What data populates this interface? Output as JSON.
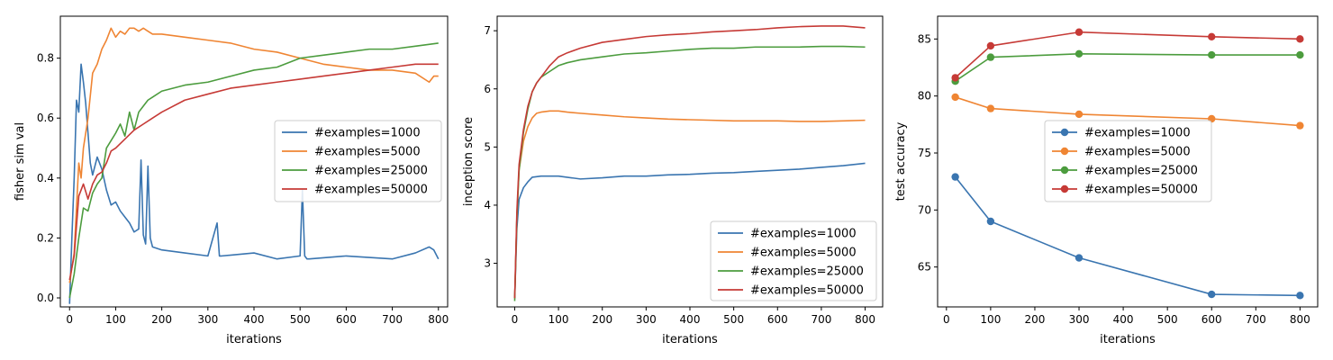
{
  "chart_data": [
    {
      "type": "line",
      "xlabel": "iterations",
      "ylabel": "fisher sim val",
      "xlim": [
        -20,
        820
      ],
      "ylim": [
        -0.03,
        0.94
      ],
      "xticks": [
        0,
        100,
        200,
        300,
        400,
        500,
        600,
        700,
        800
      ],
      "yticks": [
        0.0,
        0.2,
        0.4,
        0.6,
        0.8
      ],
      "legend": "center-right",
      "series": [
        {
          "name": "#examples=1000",
          "color": "#3a75b0",
          "x": [
            0,
            5,
            10,
            15,
            20,
            25,
            30,
            35,
            40,
            45,
            50,
            60,
            70,
            80,
            90,
            100,
            110,
            120,
            130,
            140,
            150,
            155,
            160,
            165,
            170,
            175,
            180,
            200,
            250,
            300,
            320,
            325,
            330,
            400,
            450,
            500,
            505,
            510,
            515,
            520,
            600,
            700,
            750,
            780,
            790,
            800
          ],
          "y": [
            -0.02,
            0.2,
            0.4,
            0.66,
            0.62,
            0.78,
            0.72,
            0.65,
            0.55,
            0.45,
            0.41,
            0.47,
            0.43,
            0.36,
            0.31,
            0.32,
            0.29,
            0.27,
            0.25,
            0.22,
            0.23,
            0.46,
            0.21,
            0.18,
            0.44,
            0.2,
            0.17,
            0.16,
            0.15,
            0.14,
            0.25,
            0.14,
            0.14,
            0.15,
            0.13,
            0.14,
            0.36,
            0.14,
            0.13,
            0.13,
            0.14,
            0.13,
            0.15,
            0.17,
            0.16,
            0.13
          ]
        },
        {
          "name": "#examples=5000",
          "color": "#ef8533",
          "x": [
            0,
            10,
            20,
            25,
            30,
            40,
            50,
            60,
            70,
            80,
            90,
            100,
            110,
            120,
            130,
            140,
            150,
            160,
            170,
            180,
            200,
            250,
            300,
            350,
            400,
            450,
            500,
            550,
            600,
            650,
            700,
            750,
            780,
            790,
            800
          ],
          "y": [
            0.05,
            0.15,
            0.45,
            0.4,
            0.5,
            0.6,
            0.75,
            0.78,
            0.83,
            0.86,
            0.9,
            0.87,
            0.89,
            0.88,
            0.9,
            0.9,
            0.89,
            0.9,
            0.89,
            0.88,
            0.88,
            0.87,
            0.86,
            0.85,
            0.83,
            0.82,
            0.8,
            0.78,
            0.77,
            0.76,
            0.76,
            0.75,
            0.72,
            0.74,
            0.74
          ]
        },
        {
          "name": "#examples=25000",
          "color": "#4c9c3e",
          "x": [
            0,
            10,
            20,
            30,
            40,
            50,
            60,
            70,
            80,
            100,
            110,
            120,
            130,
            140,
            150,
            160,
            170,
            180,
            200,
            250,
            300,
            350,
            400,
            450,
            500,
            550,
            600,
            650,
            700,
            750,
            800
          ],
          "y": [
            0.0,
            0.08,
            0.2,
            0.3,
            0.29,
            0.35,
            0.38,
            0.4,
            0.5,
            0.55,
            0.58,
            0.54,
            0.62,
            0.56,
            0.62,
            0.64,
            0.66,
            0.67,
            0.69,
            0.71,
            0.72,
            0.74,
            0.76,
            0.77,
            0.8,
            0.81,
            0.82,
            0.83,
            0.83,
            0.84,
            0.85
          ]
        },
        {
          "name": "#examples=50000",
          "color": "#c63a36",
          "x": [
            0,
            10,
            20,
            30,
            40,
            50,
            60,
            70,
            80,
            90,
            100,
            120,
            140,
            160,
            180,
            200,
            250,
            300,
            350,
            400,
            450,
            500,
            550,
            600,
            650,
            700,
            750,
            800
          ],
          "y": [
            0.06,
            0.14,
            0.34,
            0.38,
            0.33,
            0.38,
            0.41,
            0.42,
            0.45,
            0.49,
            0.5,
            0.53,
            0.56,
            0.58,
            0.6,
            0.62,
            0.66,
            0.68,
            0.7,
            0.71,
            0.72,
            0.73,
            0.74,
            0.75,
            0.76,
            0.77,
            0.78,
            0.78
          ]
        }
      ]
    },
    {
      "type": "line",
      "xlabel": "iterations",
      "ylabel": "inception score",
      "xlim": [
        -40,
        840
      ],
      "ylim": [
        2.25,
        7.25
      ],
      "xticks": [
        0,
        100,
        200,
        300,
        400,
        500,
        600,
        700,
        800
      ],
      "yticks": [
        3,
        4,
        5,
        6,
        7
      ],
      "legend": "lower-right",
      "series": [
        {
          "name": "#examples=1000",
          "color": "#3a75b0",
          "x": [
            0,
            5,
            10,
            20,
            30,
            40,
            60,
            80,
            100,
            150,
            200,
            250,
            300,
            350,
            400,
            450,
            500,
            550,
            600,
            650,
            700,
            750,
            800
          ],
          "y": [
            2.4,
            3.6,
            4.1,
            4.3,
            4.4,
            4.48,
            4.5,
            4.5,
            4.5,
            4.45,
            4.47,
            4.5,
            4.5,
            4.52,
            4.53,
            4.55,
            4.56,
            4.58,
            4.6,
            4.62,
            4.65,
            4.68,
            4.72
          ]
        },
        {
          "name": "#examples=5000",
          "color": "#ef8533",
          "x": [
            0,
            5,
            10,
            20,
            30,
            40,
            50,
            60,
            80,
            100,
            120,
            150,
            200,
            250,
            300,
            350,
            400,
            450,
            500,
            550,
            600,
            650,
            700,
            750,
            800
          ],
          "y": [
            2.4,
            3.8,
            4.6,
            5.1,
            5.35,
            5.5,
            5.58,
            5.6,
            5.62,
            5.62,
            5.6,
            5.58,
            5.55,
            5.52,
            5.5,
            5.48,
            5.47,
            5.46,
            5.45,
            5.45,
            5.45,
            5.44,
            5.44,
            5.45,
            5.46
          ]
        },
        {
          "name": "#examples=25000",
          "color": "#4c9c3e",
          "x": [
            0,
            5,
            10,
            20,
            30,
            40,
            50,
            60,
            80,
            100,
            120,
            150,
            200,
            250,
            300,
            350,
            400,
            450,
            500,
            550,
            600,
            650,
            700,
            750,
            800
          ],
          "y": [
            2.35,
            3.8,
            4.6,
            5.25,
            5.65,
            5.95,
            6.1,
            6.2,
            6.3,
            6.4,
            6.45,
            6.5,
            6.55,
            6.6,
            6.62,
            6.65,
            6.68,
            6.7,
            6.7,
            6.72,
            6.72,
            6.72,
            6.73,
            6.73,
            6.72
          ]
        },
        {
          "name": "#examples=50000",
          "color": "#c63a36",
          "x": [
            0,
            5,
            10,
            20,
            30,
            40,
            50,
            60,
            80,
            100,
            120,
            150,
            200,
            250,
            300,
            350,
            400,
            450,
            500,
            550,
            600,
            650,
            700,
            750,
            800
          ],
          "y": [
            2.4,
            3.9,
            4.7,
            5.3,
            5.7,
            5.95,
            6.1,
            6.2,
            6.4,
            6.55,
            6.62,
            6.7,
            6.8,
            6.85,
            6.9,
            6.93,
            6.95,
            6.98,
            7.0,
            7.02,
            7.05,
            7.07,
            7.08,
            7.08,
            7.05
          ]
        }
      ]
    },
    {
      "type": "line",
      "xlabel": "iterations",
      "ylabel": "test accuracy",
      "xlim": [
        -20,
        840
      ],
      "ylim": [
        61.5,
        87.0
      ],
      "xticks": [
        0,
        100,
        200,
        300,
        400,
        500,
        600,
        700,
        800
      ],
      "yticks": [
        65,
        70,
        75,
        80,
        85
      ],
      "legend": "center-left",
      "markers": true,
      "series": [
        {
          "name": "#examples=1000",
          "color": "#3a75b0",
          "x": [
            20,
            100,
            300,
            600,
            800
          ],
          "y": [
            72.9,
            69.0,
            65.8,
            62.6,
            62.5
          ]
        },
        {
          "name": "#examples=5000",
          "color": "#ef8533",
          "x": [
            20,
            100,
            300,
            600,
            800
          ],
          "y": [
            79.9,
            78.9,
            78.4,
            78.0,
            77.4
          ]
        },
        {
          "name": "#examples=25000",
          "color": "#4c9c3e",
          "x": [
            20,
            100,
            300,
            600,
            800
          ],
          "y": [
            81.3,
            83.4,
            83.7,
            83.6,
            83.6
          ]
        },
        {
          "name": "#examples=50000",
          "color": "#c63a36",
          "x": [
            20,
            100,
            300,
            600,
            800
          ],
          "y": [
            81.6,
            84.4,
            85.6,
            85.2,
            85.0
          ]
        }
      ]
    }
  ]
}
